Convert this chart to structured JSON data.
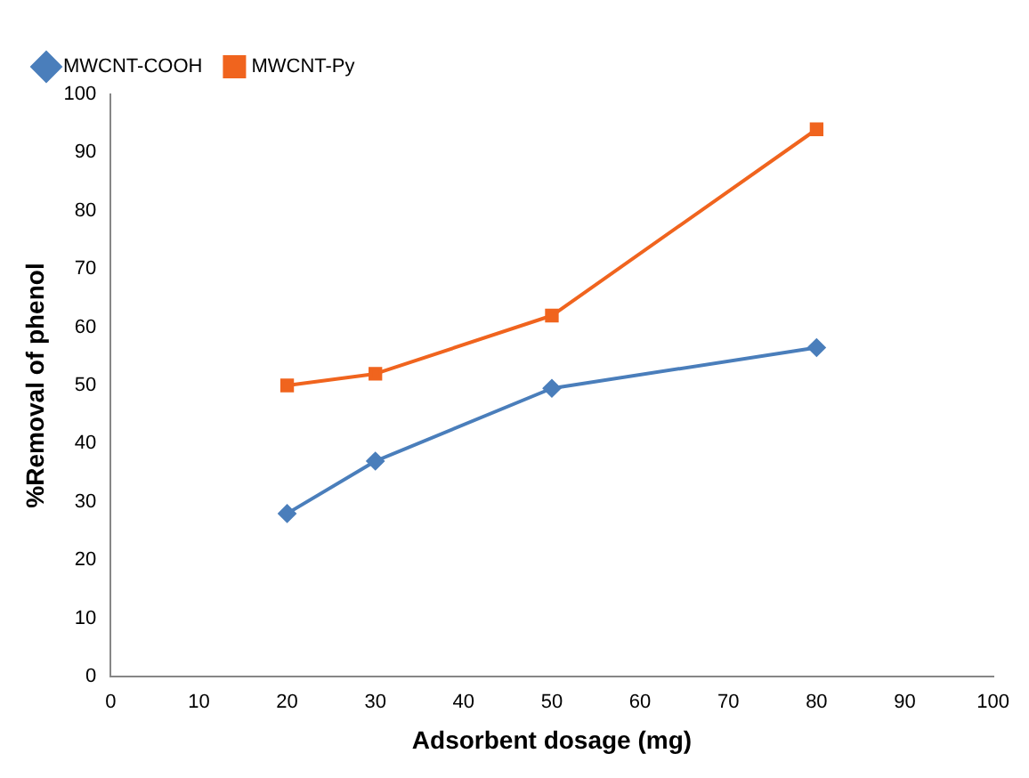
{
  "chart_data": {
    "type": "line",
    "xlabel": "Adsorbent dosage (mg)",
    "ylabel": "%Removal of phenol",
    "x": [
      20,
      30,
      50,
      80
    ],
    "series": [
      {
        "name": "MWCNT-COOH",
        "color": "#4a7ebb",
        "marker": "diamond",
        "values": [
          28,
          37,
          49.5,
          56.5
        ]
      },
      {
        "name": "MWCNT-Py",
        "color": "#f0641e",
        "marker": "square",
        "values": [
          50,
          52,
          62,
          94
        ]
      }
    ],
    "xlim": [
      0,
      100
    ],
    "xticks": [
      0,
      10,
      20,
      30,
      40,
      50,
      60,
      70,
      80,
      90,
      100
    ],
    "ylim": [
      0,
      100
    ],
    "yticks": [
      0,
      10,
      20,
      30,
      40,
      50,
      60,
      70,
      80,
      90,
      100
    ],
    "grid": false,
    "legend": "top left"
  }
}
